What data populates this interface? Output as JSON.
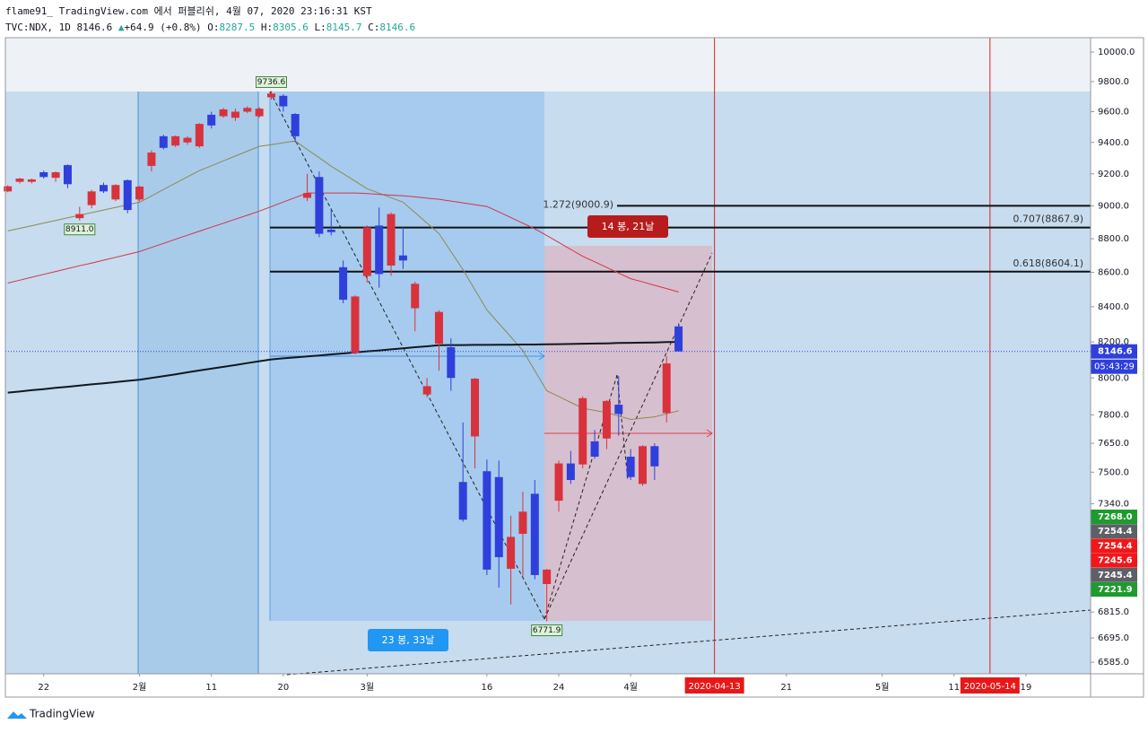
{
  "header": {
    "title": "flame91_ TradingView.com 에서 퍼블리쉬, 4월 07, 2020 23:16:31 KST",
    "symbol": "TVC:NDX, 1D",
    "last": "8146.6",
    "arrow": "▲",
    "change": "+64.9 (+0.8%)",
    "ohlc": [
      {
        "label": "O:",
        "value": "8287.5"
      },
      {
        "label": "H:",
        "value": "8305.6"
      },
      {
        "label": "L:",
        "value": "8145.7"
      },
      {
        "label": "C:",
        "value": "8146.6"
      }
    ]
  },
  "footer": {
    "brand": "TradingView"
  },
  "chart_data": {
    "type": "candlestick",
    "log_scale": true,
    "grid": false,
    "up_color": "#d9323c",
    "down_color": "#2f3fdc",
    "open": [
      9090,
      9150,
      9150,
      9210,
      9175,
      9255,
      8925,
      9005,
      9130,
      9040,
      9160,
      9040,
      9250,
      9440,
      9380,
      9400,
      9375,
      9580,
      9570,
      9560,
      9600,
      9570,
      9695,
      9705,
      9585,
      9050,
      9180,
      8855,
      8630,
      8137,
      8578,
      8880,
      8640,
      8700,
      8391,
      7910,
      8190,
      8170,
      7450,
      7686,
      7505,
      7475,
      7020,
      7190,
      7390,
      6947,
      7355,
      7545,
      7540,
      7660,
      7675,
      7855,
      7580,
      7440,
      7635,
      7810,
      8287.5
    ],
    "high": [
      9128,
      9175,
      9170,
      9220,
      9215,
      9260,
      8995,
      9100,
      9145,
      9135,
      9165,
      9125,
      9350,
      9450,
      9445,
      9440,
      9525,
      9600,
      9625,
      9620,
      9635,
      9630,
      9736.6,
      9715,
      9590,
      9200,
      9215,
      8980,
      8670,
      8465,
      8880,
      8990,
      8960,
      8870,
      8545,
      8000,
      8380,
      8220,
      7760,
      8000,
      7565,
      7560,
      7280,
      7400,
      7460,
      7020,
      7560,
      7610,
      7900,
      7720,
      7880,
      8010,
      7620,
      7640,
      7650,
      8120,
      8305.6
    ],
    "low": [
      9085,
      9140,
      9140,
      9170,
      9150,
      9110,
      8911,
      8985,
      9080,
      9030,
      8955,
      9030,
      9215,
      9355,
      9370,
      9385,
      9365,
      9490,
      9560,
      9540,
      9590,
      9560,
      9680,
      9600,
      9400,
      9030,
      8810,
      8820,
      8420,
      8130,
      8540,
      8510,
      8580,
      8620,
      8260,
      7895,
      8040,
      7930,
      7250,
      7520,
      6990,
      6930,
      6850,
      6980,
      6970,
      6771.9,
      7300,
      7440,
      7520,
      7570,
      7620,
      7690,
      7460,
      7430,
      7460,
      7760,
      8145.7
    ],
    "close": [
      9122,
      9170,
      9165,
      9180,
      9210,
      9135,
      8950,
      9090,
      9090,
      9130,
      8975,
      9120,
      9335,
      9365,
      9440,
      9430,
      9520,
      9510,
      9615,
      9600,
      9625,
      9620,
      9720,
      9635,
      9440,
      9080,
      8830,
      8840,
      8440,
      8459,
      8869,
      8590,
      8950,
      8670,
      8533,
      7955,
      8370,
      8000,
      7260,
      7996,
      7016,
      7076,
      7175,
      7300,
      6990,
      7016,
      7545,
      7460,
      7890,
      7580,
      7875,
      7805,
      7475,
      7635,
      7530,
      8080,
      8146.6
    ],
    "series": [
      {
        "color": "#8b8a52",
        "values": [
          8847,
          8863,
          8879,
          8895,
          8911,
          8927,
          8943,
          8959,
          8975,
          8991,
          9007,
          9023,
          9062,
          9102,
          9141,
          9181,
          9220,
          9251,
          9282,
          9313,
          9344,
          9375,
          9386,
          9398,
          9409,
          9355,
          9302,
          9248,
          9201,
          9154,
          9107,
          9079,
          9051,
          9023,
          8959,
          8895,
          8831,
          8723,
          8616,
          8498,
          8381,
          8304,
          8228,
          8151,
          8040,
          7930,
          7899,
          7867,
          7836,
          7824,
          7813,
          7794,
          7776,
          7783,
          7790,
          7806,
          7822
        ]
      },
      {
        "color": "#d2344a",
        "values": [
          8537,
          8554,
          8571,
          8588,
          8605,
          8622,
          8639,
          8655,
          8672,
          8689,
          8706,
          8723,
          8748,
          8772,
          8797,
          8821,
          8846,
          8870,
          8894,
          8919,
          8943,
          8968,
          8996,
          9024,
          9052,
          9080,
          9080,
          9080,
          9080,
          9080,
          9076,
          9072,
          9067,
          9063,
          9056,
          9048,
          9041,
          9030,
          9019,
          9008,
          8997,
          8963,
          8929,
          8894,
          8860,
          8819,
          8778,
          8736,
          8695,
          8662,
          8629,
          8596,
          8563,
          8544,
          8524,
          8505,
          8485
        ]
      },
      {
        "color": "#101820",
        "values": [
          7920,
          7926,
          7933,
          7939,
          7946,
          7952,
          7958,
          7965,
          7971,
          7977,
          7984,
          7990,
          8000,
          8010,
          8020,
          8031,
          8041,
          8051,
          8061,
          8071,
          8082,
          8092,
          8102,
          8108,
          8113,
          8119,
          8124,
          8130,
          8135,
          8141,
          8147,
          8152,
          8158,
          8164,
          8170,
          8175,
          8181,
          8182,
          8182,
          8183,
          8183,
          8184,
          8184,
          8185,
          8185,
          8186,
          8187,
          8188,
          8190,
          8191,
          8192,
          8194,
          8195,
          8196,
          8197,
          8199,
          8200
        ]
      }
    ],
    "ylim": [
      6533,
      10099
    ],
    "yticks": [
      {
        "value": 10000,
        "label": "10000.0"
      },
      {
        "value": 9800,
        "label": "9800.0"
      },
      {
        "value": 9600,
        "label": "9600.0"
      },
      {
        "value": 9400,
        "label": "9400.0"
      },
      {
        "value": 9200,
        "label": "9200.0"
      },
      {
        "value": 9000,
        "label": "9000.0"
      },
      {
        "value": 8800,
        "label": "8800.0"
      },
      {
        "value": 8600,
        "label": "8600.0"
      },
      {
        "value": 8400,
        "label": "8400.0"
      },
      {
        "value": 8200,
        "label": "8200.0"
      },
      {
        "value": 8000,
        "label": "8000.0"
      },
      {
        "value": 7800,
        "label": "7800.0"
      },
      {
        "value": 7650,
        "label": "7650.0"
      },
      {
        "value": 7500,
        "label": "7500.0"
      },
      {
        "value": 7340,
        "label": "7340.0"
      },
      {
        "value": 6815,
        "label": "6815.0"
      },
      {
        "value": 6695,
        "label": "6695.0"
      },
      {
        "value": 6585,
        "label": "6585.0"
      }
    ],
    "xlim": [
      -0.2,
      90.4
    ],
    "xticks": [
      {
        "value": 3,
        "label": "22"
      },
      {
        "value": 11,
        "label": "2월"
      },
      {
        "value": 17,
        "label": "11"
      },
      {
        "value": 23,
        "label": "20"
      },
      {
        "value": 30,
        "label": "3월"
      },
      {
        "value": 40,
        "label": "16"
      },
      {
        "value": 46,
        "label": "24"
      },
      {
        "value": 52,
        "label": "4월"
      },
      {
        "value": 65,
        "label": "21"
      },
      {
        "value": 73,
        "label": "5월"
      },
      {
        "value": 79,
        "label": "11"
      },
      {
        "value": 85,
        "label": "19"
      }
    ],
    "date_markers": [
      {
        "value": 59,
        "label": "2020-04-13"
      },
      {
        "value": 82,
        "label": "2020-05-14"
      }
    ],
    "levels": [
      {
        "value": 9000.9,
        "label": "1.272(9000.9)"
      },
      {
        "value": 8867.9,
        "label": "0.707(8867.9)"
      },
      {
        "value": 8604.1,
        "label": "0.618(8604.1)"
      }
    ],
    "extreme_labels": [
      {
        "value": 9736.6,
        "label": "9736.6"
      },
      {
        "value": 8911,
        "label": "8911.0"
      },
      {
        "value": 6771.9,
        "label": "6771.9"
      }
    ],
    "range_labels": [
      "23 봉, 33날",
      "14 봉, 21날"
    ],
    "timer": "05:43:29",
    "price_badges": [
      {
        "label": "7268.0",
        "color": "#1f9a2e"
      },
      {
        "label": "7254.4",
        "color": "#5d6066"
      },
      {
        "label": "7254.4",
        "color": "#f0171b"
      },
      {
        "label": "7245.6",
        "color": "#f0171b"
      },
      {
        "label": "7245.4",
        "color": "#5d6066"
      },
      {
        "label": "7221.9",
        "color": "#1f9a2e"
      }
    ]
  }
}
